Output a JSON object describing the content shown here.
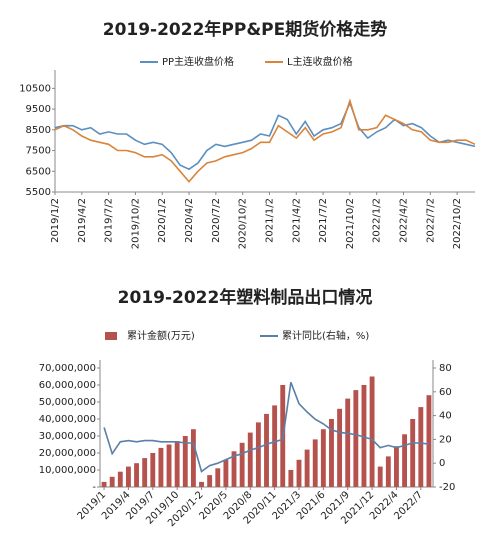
{
  "chart_data": [
    {
      "type": "line",
      "title": "2019-2022年PP&PE期货价格走势",
      "categories": [
        "2019/1/2",
        null,
        null,
        "2019/4/2",
        null,
        null,
        "2019/7/2",
        null,
        null,
        "2019/10/2",
        null,
        null,
        "2020/1/2",
        null,
        null,
        "2020/4/2",
        null,
        null,
        "2020/7/2",
        null,
        null,
        "2020/10/2",
        null,
        null,
        "2021/1/2",
        null,
        null,
        "2021/4/2",
        null,
        null,
        "2021/7/2",
        null,
        null,
        "2021/10/2",
        null,
        null,
        "2022/1/2",
        null,
        null,
        "2022/4/2",
        null,
        null,
        "2022/7/2",
        null,
        null,
        "2022/10/2",
        null,
        null
      ],
      "series": [
        {
          "name": "PP主连收盘价格",
          "color": "#5b8fc0",
          "values": [
            8600,
            8700,
            8700,
            8500,
            8600,
            8300,
            8400,
            8300,
            8300,
            8000,
            7800,
            7900,
            7800,
            7400,
            6800,
            6600,
            6900,
            7500,
            7800,
            7700,
            7800,
            7900,
            8000,
            8300,
            8200,
            9200,
            9000,
            8300,
            8900,
            8200,
            8500,
            8600,
            8800,
            9800,
            8600,
            8100,
            8400,
            8600,
            9000,
            8700,
            8800,
            8600,
            8200,
            7900,
            8000,
            7900,
            7800,
            7700
          ]
        },
        {
          "name": "L主连收盘价格",
          "color": "#d9843a",
          "values": [
            8500,
            8700,
            8500,
            8200,
            8000,
            7900,
            7800,
            7500,
            7500,
            7400,
            7200,
            7200,
            7300,
            7000,
            6500,
            6000,
            6500,
            6900,
            7000,
            7200,
            7300,
            7400,
            7600,
            7900,
            7900,
            8700,
            8400,
            8100,
            8600,
            8000,
            8300,
            8400,
            8600,
            9900,
            8500,
            8500,
            8600,
            9200,
            9000,
            8800,
            8500,
            8400,
            8000,
            7900,
            7900,
            8000,
            8000,
            7800
          ]
        }
      ],
      "ylim": [
        5500,
        11000
      ],
      "yticks": [
        5500,
        6500,
        7500,
        8500,
        9500,
        10500
      ],
      "grid": false
    },
    {
      "type": "bar",
      "title": "2019-2022年塑料制品出口情况",
      "categories": [
        "2019/1",
        null,
        null,
        "2019/4",
        null,
        null,
        "2019/7",
        null,
        null,
        "2019/10",
        null,
        null,
        "2020/1-2",
        null,
        null,
        "2020/5",
        null,
        null,
        "2020/8",
        null,
        null,
        "2020/11",
        null,
        null,
        "2021/3",
        null,
        null,
        "2021/6",
        null,
        null,
        "2021/9",
        null,
        null,
        "2021/12",
        null,
        null,
        "2022/4",
        null,
        null,
        "2022/7",
        null
      ],
      "series": [
        {
          "name": "累计金额(万元)",
          "color": "#b5524e",
          "type": "bar",
          "values": [
            3000000,
            6000000,
            9000000,
            12000000,
            14000000,
            17000000,
            20000000,
            23000000,
            25000000,
            27000000,
            30000000,
            34000000,
            3000000,
            7000000,
            11000000,
            16000000,
            21000000,
            26000000,
            32000000,
            38000000,
            43000000,
            48000000,
            60000000,
            10000000,
            16000000,
            22000000,
            28000000,
            34000000,
            40000000,
            46000000,
            52000000,
            57000000,
            60000000,
            65000000,
            12000000,
            18000000,
            24000000,
            31000000,
            40000000,
            47000000,
            54000000
          ]
        },
        {
          "name": "累计同比(右轴，%)",
          "color": "#5b7fa6",
          "type": "line",
          "axis": "y2",
          "values": [
            30,
            8,
            18,
            19,
            18,
            19,
            19,
            18,
            18,
            18,
            17,
            17,
            -7,
            -2,
            0,
            3,
            6,
            8,
            11,
            13,
            16,
            18,
            20,
            68,
            50,
            43,
            37,
            33,
            28,
            26,
            25,
            24,
            22,
            20,
            13,
            15,
            13,
            15,
            17,
            17,
            16
          ]
        }
      ],
      "ylim": [
        0,
        70000000
      ],
      "yticks": [
        {
          "value": 0,
          "label": "-"
        },
        {
          "value": 10000000,
          "label": "10,000,000"
        },
        {
          "value": 20000000,
          "label": "20,000,000"
        },
        {
          "value": 30000000,
          "label": "30,000,000"
        },
        {
          "value": 40000000,
          "label": "40,000,000"
        },
        {
          "value": 50000000,
          "label": "50,000,000"
        },
        {
          "value": 60000000,
          "label": "60,000,000"
        },
        {
          "value": 70000000,
          "label": "70,000,000"
        }
      ],
      "y2lim": [
        -20,
        80
      ],
      "y2ticks": [
        -20,
        0,
        20,
        40,
        60,
        80
      ],
      "grid": false
    }
  ]
}
